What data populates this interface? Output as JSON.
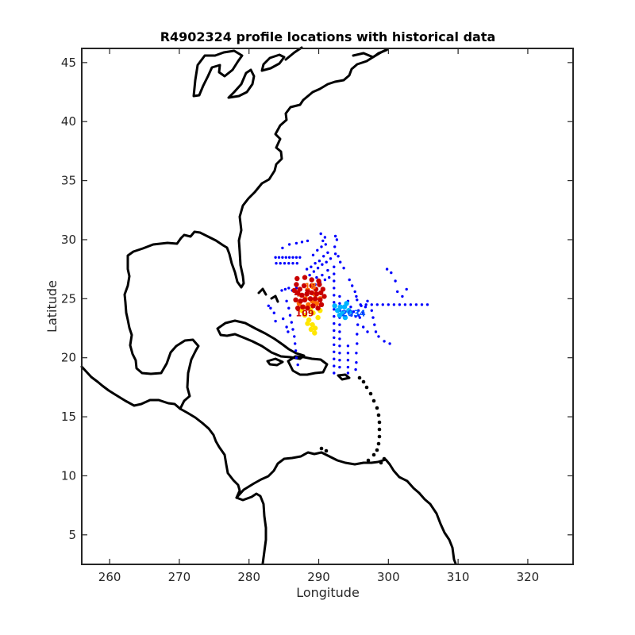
{
  "chart_data": {
    "type": "scatter",
    "title": "R4902324 profile locations with historical data",
    "xlabel": "Longitude",
    "ylabel": "Latitude",
    "xlim": [
      256,
      326.5
    ],
    "ylim": [
      2.5,
      46.2
    ],
    "xticks": [
      260,
      270,
      280,
      290,
      300,
      310,
      320
    ],
    "yticks": [
      5,
      10,
      15,
      20,
      25,
      30,
      35,
      40,
      45
    ],
    "grid": false,
    "legend": "none",
    "series": [
      {
        "color": "#0000ff",
        "marker": "dot",
        "points": [
          [
            283.8,
            28.5
          ],
          [
            284.3,
            28.5
          ],
          [
            284.8,
            28.5
          ],
          [
            285.3,
            28.5
          ],
          [
            285.8,
            28.5
          ],
          [
            286.3,
            28.5
          ],
          [
            286.8,
            28.5
          ],
          [
            287.3,
            28.5
          ],
          [
            283.9,
            28.0
          ],
          [
            284.5,
            28.0
          ],
          [
            285.1,
            28.0
          ],
          [
            285.7,
            28.0
          ],
          [
            286.3,
            28.0
          ],
          [
            286.9,
            28.0
          ],
          [
            284.8,
            29.3
          ],
          [
            285.8,
            29.6
          ],
          [
            286.8,
            29.7
          ],
          [
            287.6,
            29.8
          ],
          [
            288.4,
            29.9
          ],
          [
            284.7,
            25.7
          ],
          [
            285.2,
            25.8
          ],
          [
            285.7,
            25.9
          ],
          [
            286.2,
            25.7
          ],
          [
            286.8,
            25.9
          ],
          [
            287.3,
            25.8
          ],
          [
            285.4,
            24.8
          ],
          [
            285.7,
            24.2
          ],
          [
            285.9,
            23.6
          ],
          [
            286.1,
            23.0
          ],
          [
            286.3,
            22.4
          ],
          [
            286.5,
            21.8
          ],
          [
            286.6,
            21.2
          ],
          [
            286.7,
            20.6
          ],
          [
            286.8,
            20.0
          ],
          [
            287.0,
            19.4
          ],
          [
            284.9,
            23.3
          ],
          [
            285.4,
            22.6
          ],
          [
            285.6,
            22.2
          ],
          [
            283.1,
            24.2
          ],
          [
            283.6,
            23.8
          ],
          [
            283.8,
            23.1
          ],
          [
            282.8,
            24.4
          ],
          [
            292.2,
            27.7
          ],
          [
            292.2,
            27.1
          ],
          [
            292.2,
            26.5
          ],
          [
            292.2,
            25.9
          ],
          [
            292.2,
            25.3
          ],
          [
            292.2,
            24.7
          ],
          [
            292.2,
            24.1
          ],
          [
            292.2,
            23.5
          ],
          [
            292.2,
            22.9
          ],
          [
            292.2,
            22.3
          ],
          [
            292.2,
            21.7
          ],
          [
            292.2,
            21.1
          ],
          [
            292.2,
            20.5
          ],
          [
            292.2,
            19.9
          ],
          [
            292.2,
            19.3
          ],
          [
            292.2,
            18.7
          ],
          [
            292.4,
            28.8
          ],
          [
            292.3,
            29.4
          ],
          [
            292.6,
            30.0
          ],
          [
            292.4,
            30.3
          ],
          [
            293.0,
            25.2
          ],
          [
            293.0,
            24.6
          ],
          [
            293.0,
            24.0
          ],
          [
            293.0,
            23.4
          ],
          [
            293.0,
            22.8
          ],
          [
            293.0,
            22.2
          ],
          [
            293.0,
            21.6
          ],
          [
            293.0,
            21.0
          ],
          [
            293.0,
            20.4
          ],
          [
            293.0,
            19.8
          ],
          [
            293.0,
            19.2
          ],
          [
            294.2,
            21.0
          ],
          [
            294.2,
            20.4
          ],
          [
            294.2,
            19.8
          ],
          [
            294.2,
            19.2
          ],
          [
            294.2,
            18.7
          ],
          [
            295.3,
            19.0
          ],
          [
            295.4,
            19.6
          ],
          [
            295.4,
            20.4
          ],
          [
            295.5,
            21.2
          ],
          [
            295.5,
            22.0
          ],
          [
            295.6,
            22.8
          ],
          [
            295.7,
            23.6
          ],
          [
            294.4,
            26.6
          ],
          [
            294.8,
            26.1
          ],
          [
            295.2,
            25.6
          ],
          [
            295.4,
            25.2
          ],
          [
            293.6,
            27.6
          ],
          [
            293.1,
            28.1
          ],
          [
            292.8,
            28.6
          ],
          [
            296.0,
            24.5
          ],
          [
            296.8,
            24.5
          ],
          [
            297.6,
            24.5
          ],
          [
            298.4,
            24.5
          ],
          [
            299.2,
            24.5
          ],
          [
            300.0,
            24.5
          ],
          [
            300.8,
            24.5
          ],
          [
            301.6,
            24.5
          ],
          [
            302.4,
            24.5
          ],
          [
            303.2,
            24.5
          ],
          [
            304.0,
            24.5
          ],
          [
            304.8,
            24.5
          ],
          [
            305.6,
            24.5
          ],
          [
            299.8,
            27.5
          ],
          [
            300.4,
            27.2
          ],
          [
            301.0,
            26.5
          ],
          [
            301.3,
            25.6
          ],
          [
            302.0,
            25.2
          ],
          [
            302.6,
            25.8
          ],
          [
            297.6,
            24.0
          ],
          [
            297.8,
            23.4
          ],
          [
            298.0,
            22.8
          ],
          [
            298.2,
            22.2
          ],
          [
            298.6,
            21.8
          ],
          [
            299.4,
            21.4
          ],
          [
            300.2,
            21.2
          ],
          [
            297.0,
            22.2
          ],
          [
            296.4,
            22.6
          ],
          [
            288.3,
            27.5
          ],
          [
            288.9,
            27.7
          ],
          [
            289.5,
            28.0
          ],
          [
            290.1,
            28.2
          ],
          [
            290.7,
            28.6
          ],
          [
            291.3,
            28.9
          ],
          [
            289.2,
            28.7
          ],
          [
            289.8,
            29.1
          ],
          [
            290.4,
            29.4
          ],
          [
            291.0,
            29.6
          ],
          [
            288.7,
            27.0
          ],
          [
            289.3,
            27.3
          ],
          [
            289.9,
            27.6
          ],
          [
            290.5,
            27.9
          ],
          [
            291.1,
            28.1
          ],
          [
            291.7,
            28.4
          ],
          [
            288.9,
            26.6
          ],
          [
            289.7,
            26.8
          ],
          [
            290.5,
            27.0
          ],
          [
            291.3,
            27.4
          ],
          [
            289.5,
            26.2
          ],
          [
            290.2,
            26.4
          ],
          [
            290.9,
            26.6
          ],
          [
            291.5,
            26.8
          ],
          [
            290.3,
            30.5
          ],
          [
            290.9,
            30.2
          ],
          [
            290.6,
            29.9
          ],
          [
            294.2,
            24.8
          ],
          [
            294.6,
            24.3
          ],
          [
            295.0,
            23.9
          ],
          [
            295.3,
            23.5
          ],
          [
            295.7,
            24.0
          ],
          [
            296.1,
            24.4
          ],
          [
            296.4,
            23.8
          ],
          [
            296.7,
            24.3
          ],
          [
            297.0,
            24.8
          ],
          [
            295.5,
            24.9
          ],
          [
            294.7,
            23.6
          ],
          [
            295.9,
            23.4
          ]
        ]
      },
      {
        "color": "#00b4ff",
        "marker": "dot",
        "points": [
          [
            292.3,
            24.4
          ],
          [
            292.7,
            24.0
          ],
          [
            293.1,
            24.3
          ],
          [
            293.4,
            23.8
          ],
          [
            293.7,
            24.3
          ],
          [
            294.0,
            24.6
          ],
          [
            294.3,
            24.0
          ],
          [
            293.0,
            23.6
          ],
          [
            293.8,
            23.4
          ],
          [
            294.4,
            23.9
          ]
        ]
      },
      {
        "color": "#ffe600",
        "marker": "dot",
        "points": [
          [
            288.0,
            23.6
          ],
          [
            288.6,
            23.2
          ],
          [
            289.1,
            22.8
          ],
          [
            289.5,
            22.5
          ],
          [
            288.4,
            22.9
          ],
          [
            289.2,
            23.8
          ],
          [
            289.9,
            23.4
          ],
          [
            290.2,
            24.0
          ],
          [
            288.8,
            24.1
          ],
          [
            287.6,
            24.0
          ],
          [
            289.4,
            22.1
          ],
          [
            288.9,
            22.4
          ]
        ]
      },
      {
        "color": "#ff6a00",
        "marker": "dot",
        "points": [
          [
            287.2,
            24.6
          ],
          [
            287.8,
            24.3
          ],
          [
            288.5,
            24.5
          ],
          [
            289.1,
            24.8
          ],
          [
            289.7,
            24.6
          ],
          [
            290.2,
            25.0
          ],
          [
            288.1,
            25.0
          ],
          [
            289.4,
            25.4
          ],
          [
            287.5,
            25.3
          ]
        ]
      },
      {
        "color": "#c80000",
        "marker": "dot",
        "points": [
          [
            286.8,
            26.2
          ],
          [
            287.3,
            25.8
          ],
          [
            287.9,
            26.1
          ],
          [
            288.4,
            25.7
          ],
          [
            289.0,
            26.1
          ],
          [
            289.6,
            25.8
          ],
          [
            290.1,
            26.2
          ],
          [
            290.6,
            25.8
          ],
          [
            287.0,
            25.5
          ],
          [
            287.6,
            25.3
          ],
          [
            288.3,
            25.4
          ],
          [
            289.0,
            25.5
          ],
          [
            289.7,
            25.4
          ],
          [
            290.3,
            25.5
          ],
          [
            286.7,
            24.9
          ],
          [
            287.4,
            24.8
          ],
          [
            288.0,
            24.9
          ],
          [
            288.8,
            25.0
          ],
          [
            289.5,
            25.0
          ],
          [
            290.2,
            24.9
          ],
          [
            287.0,
            24.2
          ],
          [
            287.7,
            24.3
          ],
          [
            288.4,
            24.2
          ],
          [
            289.2,
            24.4
          ],
          [
            289.9,
            24.2
          ],
          [
            290.4,
            24.5
          ],
          [
            286.9,
            26.7
          ],
          [
            288.0,
            26.8
          ],
          [
            289.0,
            26.6
          ],
          [
            290.0,
            26.5
          ],
          [
            286.5,
            25.7
          ],
          [
            290.8,
            25.2
          ]
        ]
      }
    ],
    "labels": [
      {
        "text": "109",
        "x": 288.0,
        "y": 23.5,
        "color": "#cc0000"
      },
      {
        "text": "2034",
        "x": 295.0,
        "y": 23.5,
        "color": "#0055ff"
      },
      {
        "text": "18",
        "x": 288.8,
        "y": 25.8,
        "color": "#ff6a00"
      },
      {
        "text": "4",
        "x": 286.9,
        "y": 25.2,
        "color": "#cc0000"
      }
    ]
  }
}
